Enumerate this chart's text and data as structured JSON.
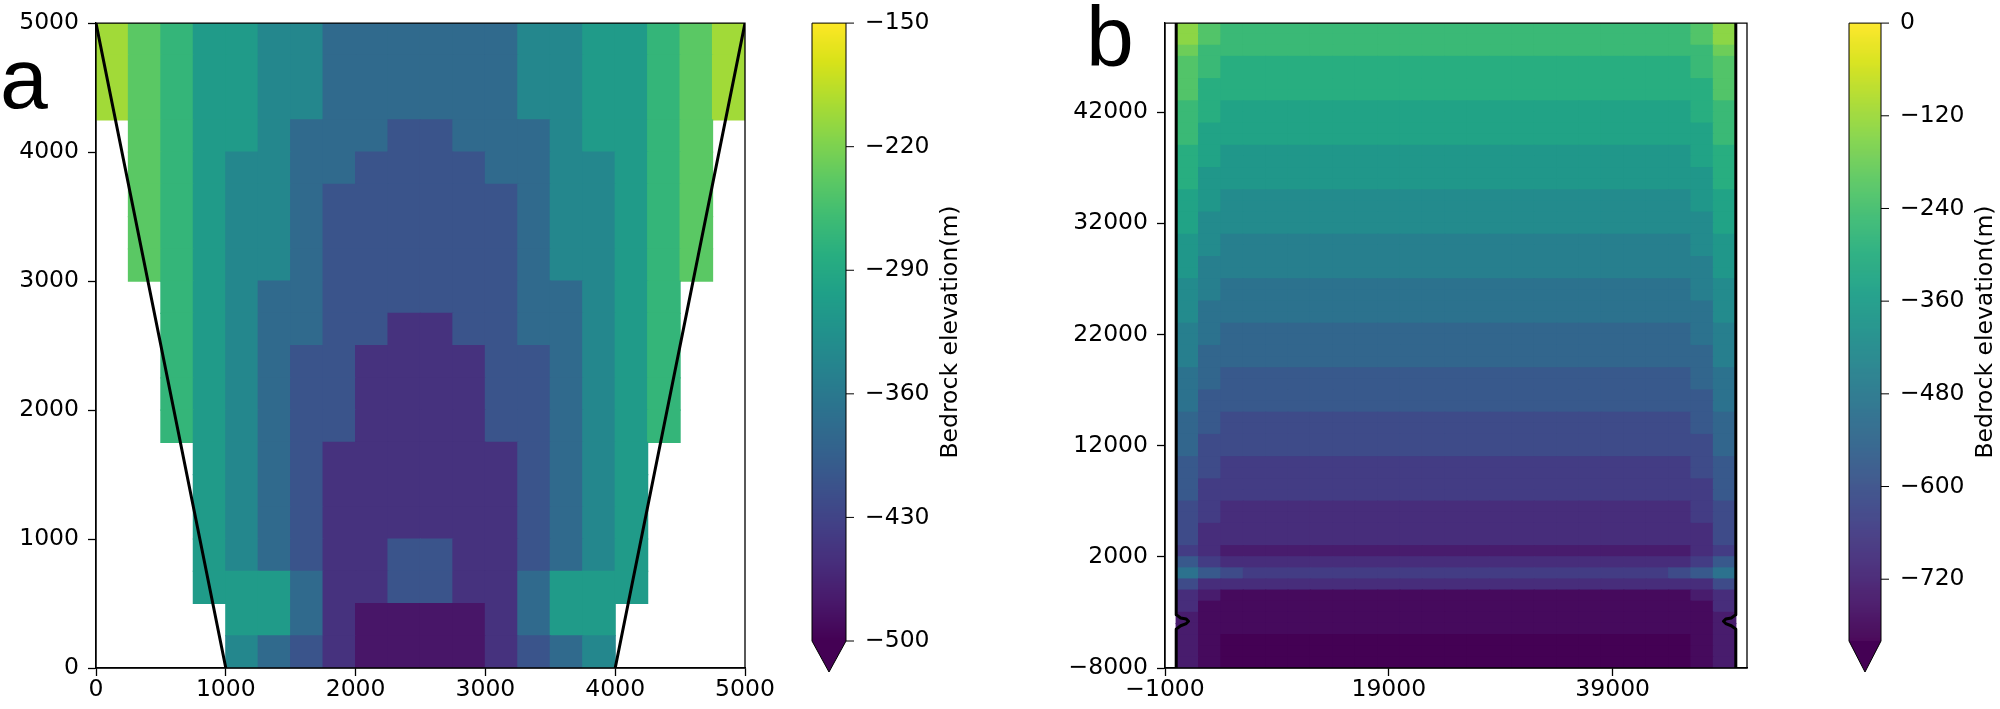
{
  "chart_data": [
    {
      "type": "heatmap",
      "x": [
        125,
        375,
        625,
        875,
        1125,
        1375,
        1625,
        1875,
        2125,
        2375,
        2625,
        2875,
        3125,
        3375,
        3625,
        3875,
        4125,
        4375,
        4625,
        4875
      ],
      "cells": [
        [
          -200,
          -240,
          -270,
          -310,
          -310,
          -340,
          -340,
          -380,
          -380,
          -380,
          -380,
          -380,
          -380,
          -340,
          -340,
          -310,
          -310,
          -270,
          -240,
          -200
        ],
        [
          -200,
          -240,
          -270,
          -310,
          -310,
          -340,
          -340,
          -380,
          -380,
          -380,
          -380,
          -380,
          -380,
          -340,
          -340,
          -310,
          -310,
          -270,
          -240,
          -200
        ],
        [
          -200,
          -240,
          -270,
          -310,
          -310,
          -340,
          -340,
          -380,
          -380,
          -380,
          -380,
          -380,
          -380,
          -340,
          -340,
          -310,
          -310,
          -270,
          -240,
          -200
        ],
        [
          null,
          -240,
          -270,
          -310,
          -310,
          -340,
          -380,
          -380,
          -380,
          -410,
          -410,
          -380,
          -380,
          -380,
          -340,
          -310,
          -310,
          -270,
          -240,
          null
        ],
        [
          null,
          -240,
          -270,
          -310,
          -340,
          -340,
          -380,
          -380,
          -410,
          -410,
          -410,
          -410,
          -380,
          -380,
          -340,
          -340,
          -310,
          -270,
          -240,
          null
        ],
        [
          null,
          -240,
          -270,
          -310,
          -340,
          -340,
          -380,
          -410,
          -410,
          -410,
          -410,
          -410,
          -410,
          -380,
          -340,
          -340,
          -310,
          -270,
          -240,
          null
        ],
        [
          null,
          -240,
          -270,
          -310,
          -340,
          -340,
          -380,
          -410,
          -410,
          -410,
          -410,
          -410,
          -410,
          -380,
          -340,
          -340,
          -310,
          -270,
          -240,
          null
        ],
        [
          null,
          -240,
          -270,
          -310,
          -340,
          -340,
          -380,
          -410,
          -410,
          -410,
          -410,
          -410,
          -410,
          -380,
          -340,
          -340,
          -310,
          -270,
          -240,
          null
        ],
        [
          null,
          null,
          -270,
          -310,
          -340,
          -380,
          -380,
          -410,
          -410,
          -410,
          -410,
          -410,
          -410,
          -380,
          -380,
          -340,
          -310,
          -270,
          null,
          null
        ],
        [
          null,
          null,
          -270,
          -310,
          -340,
          -380,
          -380,
          -410,
          -410,
          -450,
          -450,
          -410,
          -410,
          -380,
          -380,
          -340,
          -310,
          -270,
          null,
          null
        ],
        [
          null,
          null,
          -270,
          -310,
          -340,
          -380,
          -410,
          -410,
          -450,
          -450,
          -450,
          -450,
          -410,
          -410,
          -380,
          -340,
          -310,
          -270,
          null,
          null
        ],
        [
          null,
          null,
          -270,
          -310,
          -340,
          -380,
          -410,
          -410,
          -450,
          -450,
          -450,
          -450,
          -410,
          -410,
          -380,
          -340,
          -310,
          -270,
          null,
          null
        ],
        [
          null,
          null,
          -270,
          -310,
          -340,
          -380,
          -410,
          -410,
          -450,
          -450,
          -450,
          -450,
          -410,
          -410,
          -380,
          -340,
          -310,
          -270,
          null,
          null
        ],
        [
          null,
          null,
          null,
          -310,
          -340,
          -380,
          -410,
          -450,
          -450,
          -450,
          -450,
          -450,
          -450,
          -410,
          -380,
          -340,
          -310,
          null,
          null,
          null
        ],
        [
          null,
          null,
          null,
          -310,
          -340,
          -380,
          -410,
          -450,
          -450,
          -450,
          -450,
          -450,
          -450,
          -410,
          -380,
          -340,
          -310,
          null,
          null,
          null
        ],
        [
          null,
          null,
          null,
          -310,
          -340,
          -380,
          -410,
          -450,
          -450,
          -450,
          -450,
          -450,
          -450,
          -410,
          -380,
          -340,
          -310,
          null,
          null,
          null
        ],
        [
          null,
          null,
          null,
          -310,
          -340,
          -380,
          -410,
          -450,
          -450,
          -410,
          -410,
          -450,
          -450,
          -410,
          -380,
          -340,
          -310,
          null,
          null,
          null
        ],
        [
          null,
          null,
          null,
          -310,
          -310,
          -310,
          -380,
          -450,
          -450,
          -410,
          -410,
          -450,
          -450,
          -380,
          -310,
          -310,
          -310,
          null,
          null,
          null
        ],
        [
          null,
          null,
          null,
          null,
          -310,
          -310,
          -380,
          -450,
          -480,
          -480,
          -480,
          -480,
          -450,
          -380,
          -310,
          -310,
          null,
          null,
          null,
          null
        ],
        [
          null,
          null,
          null,
          null,
          -340,
          -380,
          -410,
          -450,
          -480,
          -480,
          -480,
          -480,
          -450,
          -410,
          -380,
          -340,
          null,
          null,
          null,
          null
        ]
      ],
      "series": [
        {
          "type": "line",
          "x": [
            0,
            1000
          ],
          "values": [
            5000,
            0
          ],
          "color": "#000000"
        },
        {
          "type": "line",
          "x": [
            4000,
            5000
          ],
          "values": [
            0,
            5000
          ],
          "color": "#000000"
        }
      ],
      "xlim": [
        0,
        5000
      ],
      "xticks": [
        0,
        1000,
        2000,
        3000,
        4000,
        5000
      ],
      "ylim": [
        0,
        5000
      ],
      "yticks": [
        0,
        1000,
        2000,
        3000,
        4000,
        5000
      ],
      "clim": [
        -500,
        -150
      ],
      "cticks": [
        {
          "value": -500,
          "label": "−500"
        },
        {
          "value": -430,
          "label": "−430"
        },
        {
          "value": -360,
          "label": "−360"
        },
        {
          "value": -290,
          "label": "−290"
        },
        {
          "value": -220,
          "label": "−220"
        },
        {
          "value": -150,
          "label": "−150"
        }
      ],
      "clabel": "Bedrock elevation(m)",
      "annotations": [
        "a"
      ]
    },
    {
      "type": "heatmap",
      "x": [
        1000,
        3000,
        5000,
        7000,
        9000,
        11000,
        13000,
        15000,
        17000,
        19000,
        21000,
        23000,
        25000,
        27000,
        29000,
        31000,
        33000,
        35000,
        37000,
        39000,
        41000,
        43000,
        45000,
        47000,
        49000
      ],
      "cells": [
        [
          -140,
          -220,
          -260,
          -260,
          -260,
          -260,
          -260,
          -260,
          -260,
          -260,
          -260,
          -260,
          -260,
          -260,
          -260,
          -260,
          -260,
          -260,
          -260,
          -260,
          -260,
          -260,
          -260,
          -220,
          -140
        ],
        [
          -140,
          -220,
          -260,
          -260,
          -260,
          -260,
          -260,
          -260,
          -260,
          -260,
          -260,
          -260,
          -260,
          -260,
          -260,
          -260,
          -260,
          -260,
          -260,
          -260,
          -260,
          -260,
          -260,
          -220,
          -140
        ],
        [
          -180,
          -260,
          -260,
          -260,
          -260,
          -260,
          -260,
          -260,
          -260,
          -260,
          -260,
          -260,
          -260,
          -260,
          -260,
          -260,
          -260,
          -260,
          -260,
          -260,
          -260,
          -260,
          -260,
          -260,
          -180
        ],
        [
          -220,
          -260,
          -300,
          -300,
          -300,
          -300,
          -300,
          -300,
          -300,
          -300,
          -300,
          -300,
          -300,
          -300,
          -300,
          -300,
          -300,
          -300,
          -300,
          -300,
          -300,
          -300,
          -300,
          -260,
          -220
        ],
        [
          -220,
          -260,
          -300,
          -300,
          -300,
          -300,
          -300,
          -300,
          -300,
          -300,
          -300,
          -300,
          -300,
          -300,
          -300,
          -300,
          -300,
          -300,
          -300,
          -300,
          -300,
          -300,
          -300,
          -260,
          -220
        ],
        [
          -220,
          -300,
          -300,
          -300,
          -300,
          -300,
          -300,
          -300,
          -300,
          -300,
          -300,
          -300,
          -300,
          -300,
          -300,
          -300,
          -300,
          -300,
          -300,
          -300,
          -300,
          -300,
          -300,
          -300,
          -220
        ],
        [
          -220,
          -300,
          -300,
          -300,
          -300,
          -300,
          -300,
          -300,
          -300,
          -300,
          -300,
          -300,
          -300,
          -300,
          -300,
          -300,
          -300,
          -300,
          -300,
          -300,
          -300,
          -300,
          -300,
          -300,
          -220
        ],
        [
          -260,
          -300,
          -340,
          -340,
          -340,
          -340,
          -340,
          -340,
          -340,
          -340,
          -340,
          -340,
          -340,
          -340,
          -340,
          -340,
          -340,
          -340,
          -340,
          -340,
          -340,
          -340,
          -340,
          -300,
          -260
        ],
        [
          -260,
          -300,
          -340,
          -340,
          -340,
          -340,
          -340,
          -340,
          -340,
          -340,
          -340,
          -340,
          -340,
          -340,
          -340,
          -340,
          -340,
          -340,
          -340,
          -340,
          -340,
          -340,
          -340,
          -300,
          -260
        ],
        [
          -260,
          -340,
          -340,
          -340,
          -340,
          -340,
          -340,
          -340,
          -340,
          -340,
          -340,
          -340,
          -340,
          -340,
          -340,
          -340,
          -340,
          -340,
          -340,
          -340,
          -340,
          -340,
          -340,
          -340,
          -260
        ],
        [
          -260,
          -340,
          -340,
          -340,
          -340,
          -340,
          -340,
          -340,
          -340,
          -340,
          -340,
          -340,
          -340,
          -340,
          -340,
          -340,
          -340,
          -340,
          -340,
          -340,
          -340,
          -340,
          -340,
          -340,
          -260
        ],
        [
          -300,
          -340,
          -380,
          -380,
          -380,
          -380,
          -380,
          -380,
          -380,
          -380,
          -380,
          -380,
          -380,
          -380,
          -380,
          -380,
          -380,
          -380,
          -380,
          -380,
          -380,
          -380,
          -380,
          -340,
          -300
        ],
        [
          -300,
          -340,
          -380,
          -380,
          -380,
          -380,
          -380,
          -380,
          -380,
          -380,
          -380,
          -380,
          -380,
          -380,
          -380,
          -380,
          -380,
          -380,
          -380,
          -380,
          -380,
          -380,
          -380,
          -340,
          -300
        ],
        [
          -300,
          -380,
          -380,
          -380,
          -380,
          -380,
          -380,
          -380,
          -380,
          -380,
          -380,
          -380,
          -380,
          -380,
          -380,
          -380,
          -380,
          -380,
          -380,
          -380,
          -380,
          -380,
          -380,
          -380,
          -300
        ],
        [
          -300,
          -380,
          -380,
          -380,
          -380,
          -380,
          -380,
          -380,
          -380,
          -380,
          -380,
          -380,
          -380,
          -380,
          -380,
          -380,
          -380,
          -380,
          -380,
          -380,
          -380,
          -380,
          -380,
          -380,
          -300
        ],
        [
          -340,
          -380,
          -420,
          -420,
          -420,
          -420,
          -420,
          -420,
          -420,
          -420,
          -420,
          -420,
          -420,
          -420,
          -420,
          -420,
          -420,
          -420,
          -420,
          -420,
          -420,
          -420,
          -420,
          -380,
          -340
        ],
        [
          -340,
          -380,
          -420,
          -420,
          -420,
          -420,
          -420,
          -420,
          -420,
          -420,
          -420,
          -420,
          -420,
          -420,
          -420,
          -420,
          -420,
          -420,
          -420,
          -420,
          -420,
          -420,
          -420,
          -380,
          -340
        ],
        [
          -340,
          -420,
          -420,
          -420,
          -420,
          -420,
          -420,
          -420,
          -420,
          -420,
          -420,
          -420,
          -420,
          -420,
          -420,
          -420,
          -420,
          -420,
          -420,
          -420,
          -420,
          -420,
          -420,
          -420,
          -340
        ],
        [
          -340,
          -420,
          -420,
          -420,
          -420,
          -420,
          -420,
          -420,
          -420,
          -420,
          -420,
          -420,
          -420,
          -420,
          -420,
          -420,
          -420,
          -420,
          -420,
          -420,
          -420,
          -420,
          -420,
          -420,
          -340
        ],
        [
          -380,
          -420,
          -460,
          -460,
          -460,
          -460,
          -460,
          -460,
          -460,
          -460,
          -460,
          -460,
          -460,
          -460,
          -460,
          -460,
          -460,
          -460,
          -460,
          -460,
          -460,
          -460,
          -460,
          -420,
          -380
        ],
        [
          -380,
          -420,
          -460,
          -460,
          -460,
          -460,
          -460,
          -460,
          -460,
          -460,
          -460,
          -460,
          -460,
          -460,
          -460,
          -460,
          -460,
          -460,
          -460,
          -460,
          -460,
          -460,
          -460,
          -420,
          -380
        ],
        [
          -380,
          -460,
          -460,
          -460,
          -460,
          -460,
          -460,
          -460,
          -460,
          -460,
          -460,
          -460,
          -460,
          -460,
          -460,
          -460,
          -460,
          -460,
          -460,
          -460,
          -460,
          -460,
          -460,
          -460,
          -380
        ],
        [
          -380,
          -460,
          -460,
          -460,
          -460,
          -460,
          -460,
          -460,
          -460,
          -460,
          -460,
          -460,
          -460,
          -460,
          -460,
          -460,
          -460,
          -460,
          -460,
          -460,
          -460,
          -460,
          -460,
          -460,
          -380
        ],
        [
          -420,
          -460,
          -500,
          -500,
          -500,
          -500,
          -500,
          -500,
          -500,
          -500,
          -500,
          -500,
          -500,
          -500,
          -500,
          -500,
          -500,
          -500,
          -500,
          -500,
          -500,
          -500,
          -500,
          -460,
          -420
        ],
        [
          -420,
          -460,
          -500,
          -500,
          -500,
          -500,
          -500,
          -500,
          -500,
          -500,
          -500,
          -500,
          -500,
          -500,
          -500,
          -500,
          -500,
          -500,
          -500,
          -500,
          -500,
          -500,
          -500,
          -460,
          -420
        ],
        [
          -420,
          -500,
          -500,
          -500,
          -500,
          -500,
          -500,
          -500,
          -500,
          -500,
          -500,
          -500,
          -500,
          -500,
          -500,
          -500,
          -500,
          -500,
          -500,
          -500,
          -500,
          -500,
          -500,
          -500,
          -420
        ],
        [
          -420,
          -500,
          -500,
          -500,
          -500,
          -500,
          -500,
          -500,
          -500,
          -500,
          -500,
          -500,
          -500,
          -500,
          -500,
          -500,
          -500,
          -500,
          -500,
          -500,
          -500,
          -500,
          -500,
          -500,
          -420
        ],
        [
          -460,
          -500,
          -540,
          -540,
          -540,
          -540,
          -540,
          -540,
          -540,
          -540,
          -540,
          -540,
          -540,
          -540,
          -540,
          -540,
          -540,
          -540,
          -540,
          -540,
          -540,
          -540,
          -540,
          -500,
          -460
        ],
        [
          -460,
          -500,
          -540,
          -540,
          -540,
          -540,
          -540,
          -540,
          -540,
          -540,
          -540,
          -540,
          -540,
          -540,
          -540,
          -540,
          -540,
          -540,
          -540,
          -540,
          -540,
          -540,
          -540,
          -500,
          -460
        ],
        [
          -460,
          -540,
          -540,
          -540,
          -540,
          -540,
          -540,
          -540,
          -540,
          -540,
          -540,
          -540,
          -540,
          -540,
          -540,
          -540,
          -540,
          -540,
          -540,
          -540,
          -540,
          -540,
          -540,
          -540,
          -460
        ],
        [
          -460,
          -540,
          -540,
          -540,
          -540,
          -540,
          -540,
          -540,
          -540,
          -540,
          -540,
          -540,
          -540,
          -540,
          -540,
          -540,
          -540,
          -540,
          -540,
          -540,
          -540,
          -540,
          -540,
          -540,
          -460
        ],
        [
          -500,
          -540,
          -580,
          -580,
          -580,
          -580,
          -580,
          -580,
          -580,
          -580,
          -580,
          -580,
          -580,
          -580,
          -580,
          -580,
          -580,
          -580,
          -580,
          -580,
          -580,
          -580,
          -580,
          -540,
          -500
        ],
        [
          -500,
          -540,
          -580,
          -580,
          -580,
          -580,
          -580,
          -580,
          -580,
          -580,
          -580,
          -580,
          -580,
          -580,
          -580,
          -580,
          -580,
          -580,
          -580,
          -580,
          -580,
          -580,
          -580,
          -540,
          -500
        ],
        [
          -500,
          -580,
          -580,
          -580,
          -580,
          -580,
          -580,
          -580,
          -580,
          -580,
          -580,
          -580,
          -580,
          -580,
          -580,
          -580,
          -580,
          -580,
          -580,
          -580,
          -580,
          -580,
          -580,
          -580,
          -500
        ],
        [
          -500,
          -580,
          -580,
          -580,
          -580,
          -580,
          -580,
          -580,
          -580,
          -580,
          -580,
          -580,
          -580,
          -580,
          -580,
          -580,
          -580,
          -580,
          -580,
          -580,
          -580,
          -580,
          -580,
          -580,
          -500
        ],
        [
          -540,
          -580,
          -620,
          -620,
          -620,
          -620,
          -620,
          -620,
          -620,
          -620,
          -620,
          -620,
          -620,
          -620,
          -620,
          -620,
          -620,
          -620,
          -620,
          -620,
          -620,
          -620,
          -620,
          -580,
          -540
        ],
        [
          -540,
          -580,
          -620,
          -620,
          -620,
          -620,
          -620,
          -620,
          -620,
          -620,
          -620,
          -620,
          -620,
          -620,
          -620,
          -620,
          -620,
          -620,
          -620,
          -620,
          -620,
          -620,
          -620,
          -580,
          -540
        ],
        [
          -540,
          -620,
          -620,
          -620,
          -620,
          -620,
          -620,
          -620,
          -620,
          -620,
          -620,
          -620,
          -620,
          -620,
          -620,
          -620,
          -620,
          -620,
          -620,
          -620,
          -620,
          -620,
          -620,
          -620,
          -540
        ],
        [
          -540,
          -620,
          -620,
          -620,
          -620,
          -620,
          -620,
          -620,
          -620,
          -620,
          -620,
          -620,
          -620,
          -620,
          -620,
          -620,
          -620,
          -620,
          -620,
          -620,
          -620,
          -620,
          -620,
          -620,
          -540
        ],
        [
          -580,
          -620,
          -660,
          -660,
          -660,
          -660,
          -660,
          -660,
          -660,
          -660,
          -660,
          -660,
          -660,
          -660,
          -660,
          -660,
          -660,
          -660,
          -660,
          -660,
          -660,
          -660,
          -660,
          -620,
          -580
        ],
        [
          -580,
          -620,
          -660,
          -660,
          -660,
          -660,
          -660,
          -660,
          -660,
          -660,
          -660,
          -660,
          -660,
          -660,
          -660,
          -660,
          -660,
          -660,
          -660,
          -660,
          -660,
          -660,
          -660,
          -620,
          -580
        ],
        [
          -580,
          -660,
          -660,
          -660,
          -660,
          -660,
          -660,
          -660,
          -660,
          -660,
          -660,
          -660,
          -660,
          -660,
          -660,
          -660,
          -660,
          -660,
          -660,
          -660,
          -660,
          -660,
          -660,
          -660,
          -580
        ],
        [
          -580,
          -660,
          -660,
          -660,
          -660,
          -660,
          -660,
          -660,
          -660,
          -660,
          -660,
          -660,
          -660,
          -660,
          -660,
          -660,
          -660,
          -660,
          -660,
          -660,
          -660,
          -660,
          -660,
          -660,
          -580
        ],
        [
          -620,
          -660,
          -700,
          -700,
          -700,
          -700,
          -700,
          -700,
          -700,
          -700,
          -700,
          -700,
          -700,
          -700,
          -700,
          -700,
          -700,
          -700,
          -700,
          -700,
          -700,
          -700,
          -700,
          -660,
          -620
        ],
        [
          -620,
          -660,
          -700,
          -700,
          -700,
          -700,
          -700,
          -700,
          -700,
          -700,
          -700,
          -700,
          -700,
          -700,
          -700,
          -700,
          -700,
          -700,
          -700,
          -700,
          -700,
          -700,
          -700,
          -660,
          -620
        ],
        [
          -620,
          -700,
          -700,
          -700,
          -700,
          -700,
          -700,
          -700,
          -700,
          -700,
          -700,
          -700,
          -700,
          -700,
          -700,
          -700,
          -700,
          -700,
          -700,
          -700,
          -700,
          -700,
          -700,
          -700,
          -620
        ],
        [
          -620,
          -700,
          -700,
          -700,
          -700,
          -700,
          -700,
          -700,
          -700,
          -700,
          -700,
          -700,
          -700,
          -700,
          -700,
          -700,
          -700,
          -700,
          -700,
          -700,
          -700,
          -700,
          -700,
          -700,
          -620
        ],
        [
          -660,
          -700,
          -740,
          -740,
          -740,
          -740,
          -740,
          -740,
          -740,
          -740,
          -740,
          -740,
          -740,
          -740,
          -740,
          -740,
          -740,
          -740,
          -740,
          -740,
          -740,
          -740,
          -740,
          -700,
          -660
        ],
        [
          -580,
          -660,
          -700,
          -700,
          -700,
          -700,
          -700,
          -700,
          -700,
          -700,
          -700,
          -700,
          -700,
          -700,
          -700,
          -700,
          -700,
          -700,
          -700,
          -700,
          -700,
          -700,
          -700,
          -660,
          -580
        ],
        [
          -500,
          -580,
          -620,
          -660,
          -660,
          -660,
          -660,
          -660,
          -660,
          -660,
          -660,
          -660,
          -660,
          -660,
          -660,
          -660,
          -660,
          -660,
          -660,
          -660,
          -660,
          -660,
          -620,
          -580,
          -500
        ],
        [
          -620,
          -700,
          -700,
          -700,
          -700,
          -700,
          -700,
          -700,
          -700,
          -700,
          -700,
          -700,
          -700,
          -700,
          -700,
          -700,
          -700,
          -700,
          -700,
          -700,
          -700,
          -700,
          -700,
          -700,
          -620
        ],
        [
          -700,
          -740,
          -780,
          -780,
          -780,
          -780,
          -780,
          -780,
          -780,
          -780,
          -780,
          -780,
          -780,
          -780,
          -780,
          -780,
          -780,
          -780,
          -780,
          -780,
          -780,
          -780,
          -780,
          -740,
          -700
        ],
        [
          -700,
          -780,
          -780,
          -780,
          -780,
          -780,
          -780,
          -780,
          -780,
          -780,
          -780,
          -780,
          -780,
          -780,
          -780,
          -780,
          -780,
          -780,
          -780,
          -780,
          -780,
          -780,
          -780,
          -780,
          -700
        ],
        [
          -740,
          -780,
          -780,
          -780,
          -780,
          -780,
          -780,
          -780,
          -780,
          -780,
          -780,
          -780,
          -780,
          -780,
          -780,
          -780,
          -780,
          -780,
          -780,
          -780,
          -780,
          -780,
          -780,
          -780,
          -740
        ],
        [
          -740,
          -780,
          -780,
          -780,
          -780,
          -780,
          -780,
          -780,
          -780,
          -780,
          -780,
          -780,
          -780,
          -780,
          -780,
          -780,
          -780,
          -780,
          -780,
          -780,
          -780,
          -780,
          -780,
          -780,
          -740
        ],
        [
          -740,
          -780,
          -800,
          -800,
          -800,
          -800,
          -800,
          -800,
          -800,
          -800,
          -800,
          -800,
          -800,
          -800,
          -800,
          -800,
          -800,
          -800,
          -800,
          -800,
          -800,
          -800,
          -800,
          -780,
          -740
        ],
        [
          -740,
          -780,
          -800,
          -800,
          -800,
          -800,
          -800,
          -800,
          -800,
          -800,
          -800,
          -800,
          -800,
          -800,
          -800,
          -800,
          -800,
          -800,
          -800,
          -800,
          -800,
          -800,
          -800,
          -780,
          -740
        ],
        [
          -740,
          -780,
          -800,
          -800,
          -800,
          -800,
          -800,
          -800,
          -800,
          -800,
          -800,
          -800,
          -800,
          -800,
          -800,
          -800,
          -800,
          -800,
          -800,
          -800,
          -800,
          -800,
          -800,
          -780,
          -740
        ]
      ],
      "series": [
        {
          "type": "line",
          "x": [
            0,
            0,
            400,
            900,
            1100,
            900,
            400,
            0,
            0
          ],
          "values": [
            50000,
            -3200,
            -3500,
            -3600,
            -3800,
            -4000,
            -4200,
            -4500,
            -8000
          ],
          "color": "#000000"
        },
        {
          "type": "line",
          "x": [
            50000,
            50000,
            49600,
            49100,
            48900,
            49100,
            49600,
            50000,
            50000
          ],
          "values": [
            50000,
            -3200,
            -3500,
            -3600,
            -3800,
            -4000,
            -4200,
            -4500,
            -8000
          ],
          "color": "#000000"
        }
      ],
      "xlim": [
        -1000,
        51000
      ],
      "xticks": [
        {
          "value": -1000,
          "label": "−1000"
        },
        19000,
        39000
      ],
      "ylim": [
        -8000,
        50000
      ],
      "yticks": [
        {
          "value": -8000,
          "label": "−8000"
        },
        2000,
        12000,
        22000,
        32000,
        42000
      ],
      "clim": [
        -800,
        0
      ],
      "cticks": [
        {
          "value": -720,
          "label": "−720"
        },
        {
          "value": -600,
          "label": "−600"
        },
        {
          "value": -480,
          "label": "−480"
        },
        {
          "value": -360,
          "label": "−360"
        },
        {
          "value": -240,
          "label": "−240"
        },
        {
          "value": -120,
          "label": "−120"
        },
        0
      ],
      "clabel": "Bedrock elevation(m)",
      "annotations": [
        "b"
      ]
    }
  ]
}
